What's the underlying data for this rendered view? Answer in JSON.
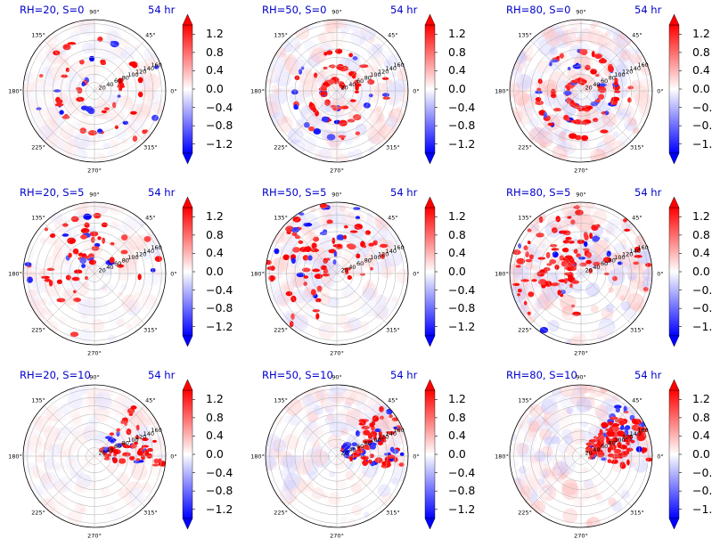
{
  "chart_data": [
    {
      "type": "heatmap",
      "title_left": "RH=20, S=0",
      "title_right": "54 hr",
      "seed": 11,
      "rh": 20,
      "s": 0
    },
    {
      "type": "heatmap",
      "title_left": "RH=50, S=0",
      "title_right": "54 hr",
      "seed": 23,
      "rh": 50,
      "s": 0
    },
    {
      "type": "heatmap",
      "title_left": "RH=80, S=0",
      "title_right": "54 hr",
      "seed": 37,
      "rh": 80,
      "s": 0
    },
    {
      "type": "heatmap",
      "title_left": "RH=20, S=5",
      "title_right": "54 hr",
      "seed": 41,
      "rh": 20,
      "s": 5
    },
    {
      "type": "heatmap",
      "title_left": "RH=50, S=5",
      "title_right": "54 hr",
      "seed": 53,
      "rh": 50,
      "s": 5
    },
    {
      "type": "heatmap",
      "title_left": "RH=80, S=5",
      "title_right": "54 hr",
      "seed": 67,
      "rh": 80,
      "s": 5
    },
    {
      "type": "heatmap",
      "title_left": "RH=20, S=10",
      "title_right": "54 hr",
      "seed": 71,
      "rh": 20,
      "s": 10
    },
    {
      "type": "heatmap",
      "title_left": "RH=50, S=10",
      "title_right": "54 hr",
      "seed": 83,
      "rh": 50,
      "s": 10
    },
    {
      "type": "heatmap",
      "title_left": "RH=80, S=10",
      "title_right": "54 hr",
      "seed": 97,
      "rh": 80,
      "s": 10
    }
  ],
  "polar_axes": {
    "angle_labels": [
      "0°",
      "45°",
      "90°",
      "135°",
      "180°",
      "225°",
      "270°",
      "315°"
    ],
    "angle_values": [
      0,
      45,
      90,
      135,
      180,
      225,
      270,
      315
    ],
    "radial_labels": [
      "20",
      "40",
      "60",
      "80",
      "100",
      "120",
      "140",
      "160"
    ],
    "radial_values": [
      20,
      40,
      60,
      80,
      100,
      120,
      140,
      160
    ],
    "rmax": 170,
    "radial_label_angle": 22.5
  },
  "colorbar": {
    "tick_labels": [
      "1.2",
      "0.8",
      "0.4",
      "0.0",
      "−0.4",
      "−0.8",
      "−1.2"
    ],
    "tick_values": [
      1.2,
      0.8,
      0.4,
      0.0,
      -0.4,
      -0.8,
      -1.2
    ],
    "vmin": -1.4,
    "vmax": 1.4,
    "extend": "both",
    "colormap": "bwr"
  },
  "colors": {
    "title": "#0000cc",
    "positive": "#ff0000",
    "negative": "#0000ff",
    "grid": "#b0b0b0"
  }
}
